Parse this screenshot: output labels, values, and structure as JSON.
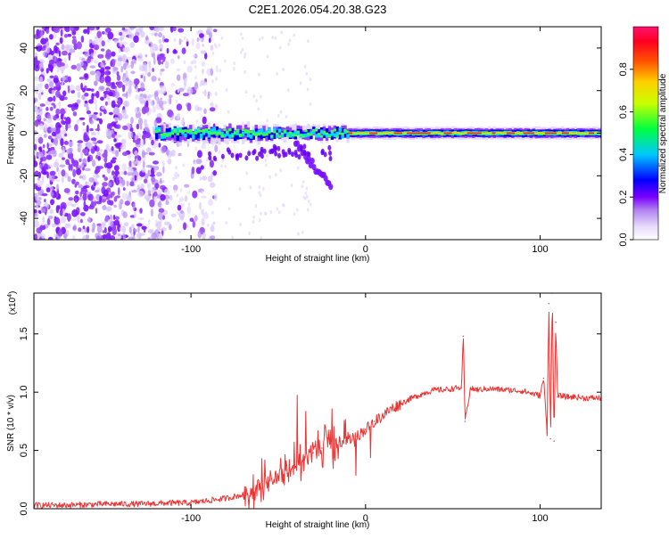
{
  "figure_title": "C2E1.2026.054.20.38.G23",
  "chart_data": [
    {
      "type": "heatmap",
      "title": "C2E1.2026.054.20.38.G23",
      "xlabel": "Height of straight line (km)",
      "ylabel": "Frequency (Hz)",
      "xlim": [
        -190,
        135
      ],
      "ylim": [
        -50,
        50
      ],
      "xticks": [
        -100,
        0,
        100
      ],
      "xtick_labels": [
        "-100",
        "0",
        "100"
      ],
      "yticks": [
        -40,
        -20,
        0,
        20,
        40
      ],
      "ytick_labels": [
        "-40",
        "-20",
        "0",
        "20",
        "40"
      ],
      "colorbar": {
        "label": "Normalized spectral amplitude",
        "range": [
          0.0,
          1.0
        ],
        "ticks": [
          0.0,
          0.2,
          0.4,
          0.6,
          0.8
        ],
        "tick_labels": [
          "0.0",
          "0.2",
          "0.4",
          "0.6",
          "0.8"
        ],
        "colormap": [
          "#ffffff",
          "#d8c8f8",
          "#8800ff",
          "#0000ff",
          "#00ffff",
          "#00ff00",
          "#ffff00",
          "#ff8000",
          "#ff0000",
          "#ff0080"
        ]
      },
      "features": {
        "scattered_noise_region_km": [
          -190,
          -105
        ],
        "signal_band_center_hz": 0,
        "signal_onset_km": -120,
        "strong_signal_from_km": -10,
        "secondary_branch_km": [
          -40,
          -20
        ],
        "secondary_branch_hz": [
          -5,
          -25
        ]
      }
    },
    {
      "type": "line",
      "title": "",
      "xlabel": "Height of straight line (km)",
      "ylabel": "SNR (10 * v/v)",
      "multiplier_label": "(x10",
      "multiplier_exp": "4",
      "xlim": [
        -190,
        135
      ],
      "ylim": [
        0.0,
        1.85
      ],
      "xticks": [
        -100,
        0,
        100
      ],
      "xtick_labels": [
        "-100",
        "0",
        "100"
      ],
      "yticks": [
        0.0,
        0.5,
        1.0,
        1.5
      ],
      "ytick_labels": [
        "0.0",
        "0.5",
        "1.0",
        "1.5"
      ],
      "series": [
        {
          "name": "SNR",
          "color": "#ee3333",
          "x": [
            -190,
            -170,
            -150,
            -130,
            -110,
            -100,
            -90,
            -80,
            -70,
            -60,
            -55,
            -50,
            -45,
            -40,
            -35,
            -30,
            -25,
            -20,
            -15,
            -10,
            -5,
            0,
            5,
            10,
            15,
            20,
            25,
            30,
            35,
            40,
            45,
            50,
            55,
            56,
            57,
            60,
            65,
            70,
            80,
            90,
            95,
            100,
            102,
            104,
            105,
            106,
            107,
            108,
            109,
            110,
            112,
            115,
            120,
            125,
            130,
            135
          ],
          "values": [
            0.03,
            0.03,
            0.04,
            0.04,
            0.05,
            0.05,
            0.07,
            0.09,
            0.12,
            0.18,
            0.24,
            0.28,
            0.33,
            0.36,
            0.42,
            0.48,
            0.52,
            0.56,
            0.58,
            0.6,
            0.62,
            0.68,
            0.75,
            0.8,
            0.86,
            0.9,
            0.94,
            0.97,
            1.0,
            1.02,
            1.02,
            1.03,
            1.04,
            1.48,
            0.75,
            1.03,
            1.02,
            1.03,
            1.02,
            1.01,
            0.99,
            0.97,
            1.12,
            0.65,
            1.76,
            0.6,
            1.85,
            0.58,
            1.6,
            0.96,
            0.97,
            0.96,
            0.96,
            0.95,
            0.95,
            0.95
          ]
        }
      ]
    }
  ]
}
